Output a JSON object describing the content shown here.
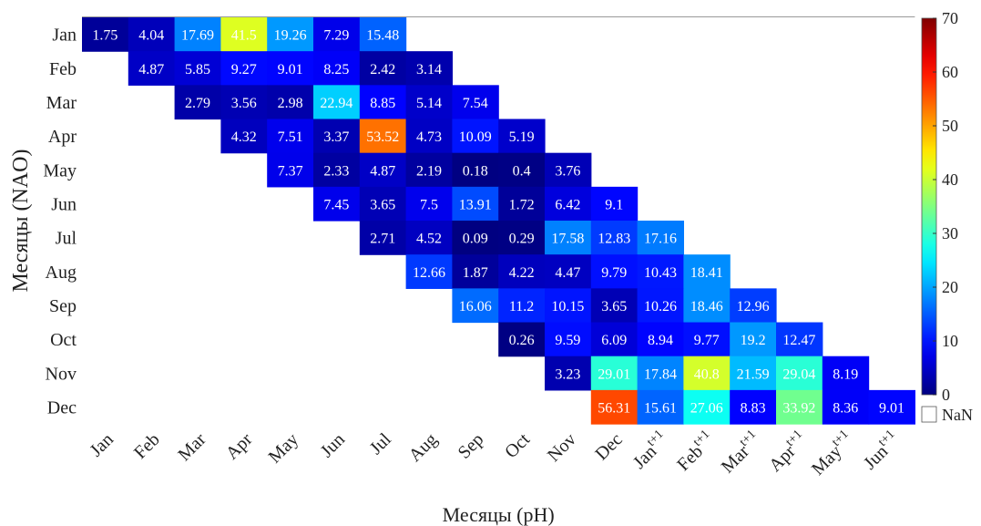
{
  "chart_data": {
    "type": "heatmap",
    "title": "",
    "xlabel": "Месяцы (pH)",
    "ylabel": "Месяцы (NAO)",
    "x_categories": [
      {
        "base": "Jan",
        "sup": ""
      },
      {
        "base": "Feb",
        "sup": ""
      },
      {
        "base": "Mar",
        "sup": ""
      },
      {
        "base": "Apr",
        "sup": ""
      },
      {
        "base": "May",
        "sup": ""
      },
      {
        "base": "Jun",
        "sup": ""
      },
      {
        "base": "Jul",
        "sup": ""
      },
      {
        "base": "Aug",
        "sup": ""
      },
      {
        "base": "Sep",
        "sup": ""
      },
      {
        "base": "Oct",
        "sup": ""
      },
      {
        "base": "Nov",
        "sup": ""
      },
      {
        "base": "Dec",
        "sup": ""
      },
      {
        "base": "Jan",
        "sup": "t+1"
      },
      {
        "base": "Feb",
        "sup": "t+1"
      },
      {
        "base": "Mar",
        "sup": "t+1"
      },
      {
        "base": "Apr",
        "sup": "t+1"
      },
      {
        "base": "May",
        "sup": "t+1"
      },
      {
        "base": "Jun",
        "sup": "t+1"
      }
    ],
    "y_categories": [
      "Jan",
      "Feb",
      "Mar",
      "Apr",
      "May",
      "Jun",
      "Jul",
      "Aug",
      "Sep",
      "Oct",
      "Nov",
      "Dec"
    ],
    "rows": [
      {
        "start": 0,
        "values": [
          1.75,
          4.04,
          17.69,
          41.5,
          19.26,
          7.29,
          15.48
        ]
      },
      {
        "start": 1,
        "values": [
          4.87,
          5.85,
          9.27,
          9.01,
          8.25,
          2.42,
          3.14
        ]
      },
      {
        "start": 2,
        "values": [
          2.79,
          3.56,
          2.98,
          22.94,
          8.85,
          5.14,
          7.54
        ]
      },
      {
        "start": 3,
        "values": [
          4.32,
          7.51,
          3.37,
          53.52,
          4.73,
          10.09,
          5.19
        ]
      },
      {
        "start": 4,
        "values": [
          7.37,
          2.33,
          4.87,
          2.19,
          0.18,
          0.4,
          3.76
        ]
      },
      {
        "start": 5,
        "values": [
          7.45,
          3.65,
          7.5,
          13.91,
          1.72,
          6.42,
          9.1
        ]
      },
      {
        "start": 6,
        "values": [
          2.71,
          4.52,
          0.09,
          0.29,
          17.58,
          12.83,
          17.16
        ]
      },
      {
        "start": 7,
        "values": [
          12.66,
          1.87,
          4.22,
          4.47,
          9.79,
          10.43,
          18.41
        ]
      },
      {
        "start": 8,
        "values": [
          16.06,
          11.2,
          10.15,
          3.65,
          10.26,
          18.46,
          12.96
        ]
      },
      {
        "start": 9,
        "values": [
          0.26,
          9.59,
          6.09,
          8.94,
          9.77,
          19.2,
          12.47
        ]
      },
      {
        "start": 10,
        "values": [
          3.23,
          29.01,
          17.84,
          40.8,
          21.59,
          29.04,
          8.19
        ]
      },
      {
        "start": 11,
        "values": [
          56.31,
          15.61,
          27.06,
          8.83,
          33.92,
          8.36,
          9.01
        ]
      }
    ],
    "colorbar": {
      "colormap": "jet",
      "range": [
        0,
        70
      ],
      "ticks": [
        0,
        10,
        20,
        30,
        40,
        50,
        60,
        70
      ],
      "nan_label": "NaN"
    },
    "missing_color": "#ffffff"
  }
}
